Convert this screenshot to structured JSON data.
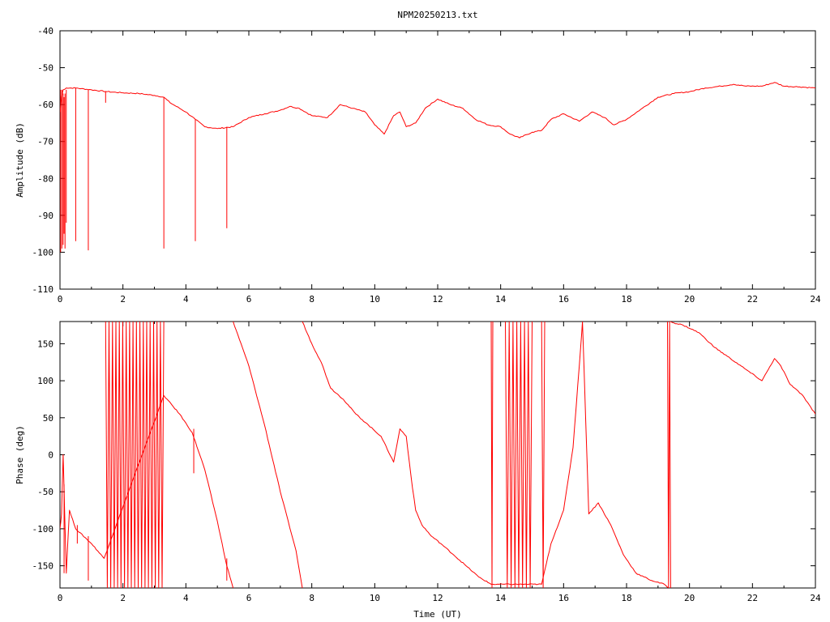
{
  "chart_data": [
    {
      "type": "line",
      "title": "NPM20250213.txt",
      "xlabel": "",
      "ylabel": "Amplitude (dB)",
      "xlim": [
        0,
        24
      ],
      "ylim": [
        -110,
        -40
      ],
      "x_ticks": [
        "0",
        "2",
        "4",
        "6",
        "8",
        "10",
        "12",
        "14",
        "16",
        "18",
        "20",
        "22",
        "24"
      ],
      "y_ticks": [
        "-40",
        "-50",
        "-60",
        "-70",
        "-80",
        "-90",
        "-100",
        "-110"
      ],
      "grid": false,
      "series": [
        {
          "color": "#ff0000",
          "x": [
            0,
            0.05,
            0.1,
            0.2,
            0.5,
            1,
            1.5,
            2,
            2.5,
            3,
            3.3,
            3.5,
            4,
            4.3,
            4.6,
            5,
            5.5,
            6,
            6.5,
            7,
            7.3,
            7.6,
            8,
            8.5,
            8.9,
            9.3,
            9.7,
            10,
            10.3,
            10.6,
            10.8,
            11,
            11.3,
            11.6,
            12,
            12.4,
            12.8,
            13.2,
            13.6,
            14,
            14.3,
            14.6,
            15,
            15.3,
            15.6,
            16,
            16.5,
            16.9,
            17.3,
            17.6,
            18,
            18.5,
            19,
            19.5,
            20,
            20.5,
            21,
            21.4,
            21.8,
            22.3,
            22.7,
            23,
            23.5,
            24
          ],
          "y": [
            -62,
            -58,
            -56,
            -55.5,
            -55.5,
            -56,
            -56.5,
            -56.8,
            -57,
            -57.5,
            -58,
            -59.5,
            -62,
            -64,
            -66,
            -66.5,
            -66,
            -63.5,
            -62.5,
            -61.5,
            -60.5,
            -61,
            -63,
            -63.5,
            -60,
            -61,
            -62,
            -65.5,
            -68,
            -63,
            -62,
            -66,
            -65,
            -61,
            -58.5,
            -60,
            -61,
            -64,
            -65.5,
            -66,
            -68,
            -69,
            -67.5,
            -67,
            -64,
            -62.5,
            -64.5,
            -62,
            -63.5,
            -65.5,
            -64,
            -61,
            -58,
            -57,
            -56.5,
            -55.5,
            -55,
            -54.5,
            -55,
            -55,
            -54,
            -55,
            -55.2,
            -55.5
          ]
        }
      ],
      "spikes": [
        {
          "x": 0.02,
          "y_top": -56,
          "y_bottom": -100
        },
        {
          "x": 0.06,
          "y_top": -56,
          "y_bottom": -99
        },
        {
          "x": 0.1,
          "y_top": -57,
          "y_bottom": -98
        },
        {
          "x": 0.13,
          "y_top": -58,
          "y_bottom": -95
        },
        {
          "x": 0.16,
          "y_top": -57,
          "y_bottom": -99
        },
        {
          "x": 0.2,
          "y_top": -56,
          "y_bottom": -92
        },
        {
          "x": 0.5,
          "y_top": -55.5,
          "y_bottom": -97
        },
        {
          "x": 0.9,
          "y_top": -56,
          "y_bottom": -99.5
        },
        {
          "x": 1.45,
          "y_top": -56.5,
          "y_bottom": -59.5
        },
        {
          "x": 3.3,
          "y_top": -58,
          "y_bottom": -99
        },
        {
          "x": 4.3,
          "y_top": -64,
          "y_bottom": -97
        },
        {
          "x": 5.3,
          "y_top": -66,
          "y_bottom": -93.5
        }
      ]
    },
    {
      "type": "line",
      "title": "",
      "xlabel": "Time (UT)",
      "ylabel": "Phase (deg)",
      "xlim": [
        0,
        24
      ],
      "ylim": [
        -180,
        180
      ],
      "x_ticks": [
        "0",
        "2",
        "4",
        "6",
        "8",
        "10",
        "12",
        "14",
        "16",
        "18",
        "20",
        "22",
        "24"
      ],
      "y_ticks": [
        "150",
        "100",
        "50",
        "0",
        "-50",
        "-100",
        "-150"
      ],
      "grid": false,
      "series": [
        {
          "color": "#ff0000",
          "x": [
            0,
            0.05,
            0.1,
            0.15,
            0.2,
            0.3,
            0.5,
            1,
            1.4,
            3.3,
            3.8,
            4.2,
            4.6,
            5,
            5.3,
            5.5,
            5.5,
            6,
            6.5,
            7,
            7.5,
            7.7,
            7.7,
            8,
            8.3,
            8.6,
            9,
            9.4,
            9.8,
            10.2,
            10.6,
            10.8,
            11,
            11.2,
            11.3,
            11.5,
            11.8,
            12.1,
            12.5,
            12.9,
            13.3,
            13.7,
            15.3,
            15.6,
            16,
            16.3,
            16.55,
            16.6,
            16.8,
            17.1,
            17.5,
            17.9,
            18.3,
            18.8,
            19.2,
            19.35,
            19.35,
            19.8,
            20.3,
            20.8,
            21.3,
            21.8,
            22.3,
            22.5,
            22.7,
            22.9,
            23.2,
            23.6,
            24
          ],
          "y": [
            -100,
            -80,
            0,
            -80,
            -160,
            -75,
            -100,
            -120,
            -140,
            80,
            55,
            30,
            -20,
            -90,
            -150,
            -180,
            180,
            120,
            40,
            -50,
            -130,
            -180,
            180,
            150,
            125,
            90,
            75,
            55,
            40,
            25,
            -10,
            35,
            25,
            -45,
            -75,
            -95,
            -110,
            -120,
            -135,
            -150,
            -165,
            -175,
            -175,
            -120,
            -75,
            10,
            150,
            180,
            -80,
            -65,
            -95,
            -135,
            -160,
            -170,
            -175,
            -180,
            180,
            175,
            165,
            145,
            130,
            115,
            100,
            115,
            130,
            120,
            95,
            80,
            55
          ]
        }
      ],
      "oscillation_bands": [
        {
          "x_start": 1.45,
          "x_end": 3.3,
          "count": 34,
          "y_low": -180,
          "y_high": 180
        },
        {
          "x_start": 13.7,
          "x_end": 13.75,
          "count": 2,
          "y_low": -180,
          "y_high": 180
        },
        {
          "x_start": 14.15,
          "x_end": 15.0,
          "count": 14,
          "y_low": -180,
          "y_high": 180
        },
        {
          "x_start": 15.3,
          "x_end": 15.4,
          "count": 2,
          "y_low": -180,
          "y_high": 180
        },
        {
          "x_start": 19.3,
          "x_end": 19.4,
          "count": 3,
          "y_low": -180,
          "y_high": 180
        }
      ],
      "spikes": [
        {
          "x": 0.13,
          "y_top": -40,
          "y_bottom": -160
        },
        {
          "x": 0.55,
          "y_top": -95,
          "y_bottom": -120
        },
        {
          "x": 0.9,
          "y_top": -110,
          "y_bottom": -170
        },
        {
          "x": 4.25,
          "y_top": 35,
          "y_bottom": -25
        },
        {
          "x": 5.3,
          "y_top": -140,
          "y_bottom": -170
        }
      ]
    }
  ]
}
